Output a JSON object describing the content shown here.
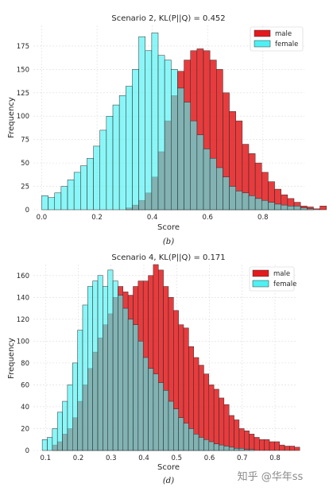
{
  "chart_data": [
    {
      "type": "bar",
      "title": "Scenario 2, KL(P||Q) = 0.452",
      "xlabel": "Score",
      "ylabel": "Frequency",
      "caption": "(b)",
      "xlim": [
        -0.03,
        0.95
      ],
      "ylim": [
        0,
        197
      ],
      "xticks": [
        0.0,
        0.2,
        0.4,
        0.6,
        0.8
      ],
      "xtick_labels": [
        "0.0",
        "0.2",
        "0.4",
        "0.6",
        "0.8"
      ],
      "yticks": [
        0,
        25,
        50,
        75,
        100,
        125,
        150,
        175
      ],
      "ytick_labels": [
        "0",
        "25",
        "50",
        "75",
        "100",
        "125",
        "150",
        "175"
      ],
      "grid": true,
      "legend_position": "top-right",
      "bin_start": 0.0,
      "bin_width": 0.0234,
      "series": [
        {
          "name": "male",
          "color": "#e31a1c",
          "values": [
            0,
            0,
            0,
            0,
            0,
            0,
            0,
            0,
            0,
            0,
            0,
            0,
            0,
            2,
            5,
            10,
            18,
            35,
            62,
            95,
            122,
            148,
            160,
            170,
            172,
            170,
            160,
            150,
            125,
            105,
            95,
            70,
            60,
            50,
            40,
            30,
            22,
            16,
            12,
            8,
            4,
            3,
            1,
            4,
            0,
            0,
            4,
            4,
            3,
            4
          ]
        },
        {
          "name": "female",
          "color": "#4df1f3",
          "values": [
            15,
            13,
            18,
            25,
            32,
            40,
            47,
            55,
            68,
            85,
            100,
            112,
            122,
            132,
            150,
            185,
            170,
            189,
            165,
            160,
            150,
            130,
            115,
            95,
            80,
            65,
            55,
            45,
            35,
            25,
            20,
            18,
            15,
            12,
            10,
            8,
            6,
            5,
            4,
            4,
            2,
            1,
            0,
            0,
            0,
            0,
            0,
            0,
            0,
            0
          ]
        }
      ]
    },
    {
      "type": "bar",
      "title": "Scenario 4, KL(P||Q) = 0.171",
      "xlabel": "Score",
      "ylabel": "Frequency",
      "caption": "(d)",
      "xlim": [
        0.063,
        0.863
      ],
      "ylim": [
        0,
        170
      ],
      "xticks": [
        0.1,
        0.2,
        0.3,
        0.4,
        0.5,
        0.6,
        0.7,
        0.8
      ],
      "xtick_labels": [
        "0.1",
        "0.2",
        "0.3",
        "0.4",
        "0.5",
        "0.6",
        "0.7",
        "0.8"
      ],
      "yticks": [
        0,
        20,
        40,
        60,
        80,
        100,
        120,
        140,
        160
      ],
      "ytick_labels": [
        "0",
        "20",
        "40",
        "60",
        "80",
        "100",
        "120",
        "140",
        "160"
      ],
      "grid": true,
      "legend_position": "top-right",
      "bin_start": 0.09,
      "bin_width": 0.0154,
      "series": [
        {
          "name": "male",
          "color": "#e31a1c",
          "values": [
            0,
            0,
            5,
            8,
            15,
            20,
            30,
            45,
            60,
            75,
            90,
            103,
            115,
            125,
            140,
            150,
            145,
            142,
            150,
            155,
            155,
            160,
            170,
            165,
            150,
            140,
            128,
            115,
            112,
            95,
            85,
            78,
            70,
            60,
            56,
            48,
            42,
            32,
            28,
            20,
            18,
            15,
            12,
            10,
            10,
            8,
            8,
            5,
            4,
            4,
            3
          ]
        },
        {
          "name": "female",
          "color": "#4df1f3",
          "values": [
            10,
            12,
            20,
            35,
            45,
            60,
            80,
            110,
            133,
            150,
            155,
            160,
            150,
            165,
            155,
            142,
            130,
            120,
            115,
            100,
            85,
            75,
            70,
            62,
            55,
            45,
            38,
            30,
            25,
            20,
            15,
            12,
            10,
            8,
            6,
            5,
            4,
            3,
            2,
            2,
            1,
            1,
            0,
            0,
            0,
            0,
            0,
            0,
            0,
            0,
            0
          ]
        }
      ]
    }
  ],
  "watermark": "知乎 @华年ss"
}
